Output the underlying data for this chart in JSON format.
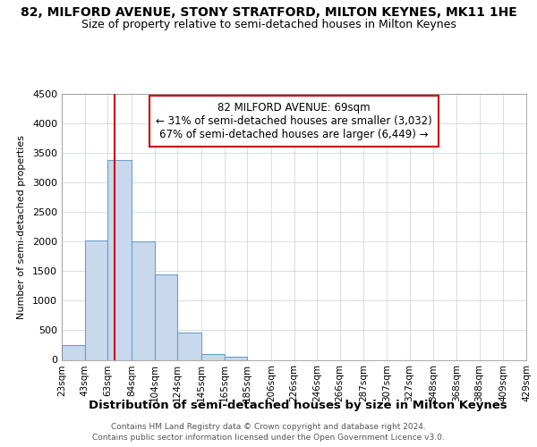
{
  "title1": "82, MILFORD AVENUE, STONY STRATFORD, MILTON KEYNES, MK11 1HE",
  "title2": "Size of property relative to semi-detached houses in Milton Keynes",
  "xlabel": "Distribution of semi-detached houses by size in Milton Keynes",
  "ylabel": "Number of semi-detached properties",
  "footer1": "Contains HM Land Registry data © Crown copyright and database right 2024.",
  "footer2": "Contains public sector information licensed under the Open Government Licence v3.0.",
  "annotation_line1": "82 MILFORD AVENUE: 69sqm",
  "annotation_line2": "← 31% of semi-detached houses are smaller (3,032)",
  "annotation_line3": "67% of semi-detached houses are larger (6,449) →",
  "property_size": 69,
  "bar_color": "#c9d9ed",
  "bar_edge_color": "#6b9fc8",
  "vline_color": "#cc0000",
  "grid_color": "#c8d0dc",
  "background_color": "#ffffff",
  "bin_edges": [
    23,
    43,
    63,
    84,
    104,
    124,
    145,
    165,
    185,
    206,
    226,
    246,
    266,
    287,
    307,
    327,
    348,
    368,
    388,
    409,
    429
  ],
  "bin_labels": [
    "23sqm",
    "43sqm",
    "63sqm",
    "84sqm",
    "104sqm",
    "124sqm",
    "145sqm",
    "165sqm",
    "185sqm",
    "206sqm",
    "226sqm",
    "246sqm",
    "266sqm",
    "287sqm",
    "307sqm",
    "327sqm",
    "348sqm",
    "368sqm",
    "388sqm",
    "409sqm",
    "429sqm"
  ],
  "bar_heights": [
    250,
    2020,
    3380,
    2010,
    1450,
    460,
    100,
    60,
    0,
    0,
    0,
    0,
    0,
    0,
    0,
    0,
    0,
    0,
    0,
    0
  ],
  "ylim": [
    0,
    4500
  ],
  "yticks": [
    0,
    500,
    1000,
    1500,
    2000,
    2500,
    3000,
    3500,
    4000,
    4500
  ]
}
